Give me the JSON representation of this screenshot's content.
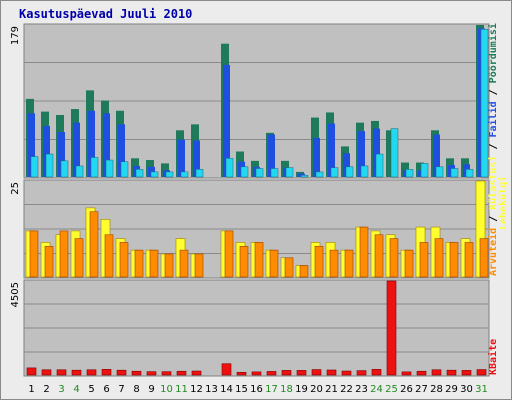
{
  "title": "Kasutuspäevad Juuli 2010",
  "colors": {
    "background": "#c0c0c0",
    "visits": "#1e7a5a",
    "pages": "#1f4fe0",
    "hits": "#22d8f0",
    "files_orange": "#ff8c00",
    "bandwidth": "#ee1111",
    "hosts_yellow": "#ffff30",
    "weekend_label": "#228b22"
  },
  "chart_data": [
    {
      "type": "bar",
      "panel": "top",
      "ymax_label": "179",
      "ylim": [
        0,
        179
      ],
      "legend_labels": [
        "Failid",
        "Lehekülgi",
        "Pöördumisi"
      ],
      "legend_separator": " / ",
      "categories": [
        "1",
        "2",
        "3",
        "4",
        "5",
        "6",
        "7",
        "8",
        "9",
        "10",
        "11",
        "12",
        "13",
        "14",
        "15",
        "16",
        "17",
        "18",
        "19",
        "20",
        "21",
        "22",
        "23",
        "24",
        "25",
        "26",
        "27",
        "28",
        "29",
        "30",
        "31"
      ],
      "series": [
        {
          "name": "Pöördumisi",
          "color": "#1e7a5a",
          "values": [
            92,
            77,
            73,
            80,
            102,
            90,
            78,
            22,
            20,
            16,
            55,
            62,
            0,
            157,
            30,
            19,
            52,
            19,
            6,
            70,
            76,
            36,
            64,
            66,
            55,
            17,
            17,
            55,
            22,
            22,
            179
          ]
        },
        {
          "name": "Lehekülgi",
          "color": "#1f4fe0",
          "values": [
            75,
            60,
            53,
            64,
            78,
            75,
            62,
            13,
            12,
            8,
            44,
            43,
            0,
            132,
            18,
            12,
            50,
            11,
            4,
            46,
            63,
            28,
            54,
            57,
            0,
            8,
            8,
            50,
            14,
            15,
            175
          ]
        },
        {
          "name": "Failid",
          "color": "#22d8f0",
          "values": [
            24,
            27,
            19,
            13,
            23,
            20,
            18,
            9,
            6,
            6,
            6,
            9,
            0,
            22,
            12,
            10,
            10,
            11,
            2,
            6,
            11,
            12,
            13,
            27,
            57,
            9,
            16,
            12,
            10,
            9,
            174
          ]
        }
      ]
    },
    {
      "type": "bar",
      "panel": "middle",
      "ymax_label": "25",
      "ylim": [
        0,
        25
      ],
      "legend_labels": [
        "Arvuteid",
        "Külastusi"
      ],
      "categories": [
        "1",
        "2",
        "3",
        "4",
        "5",
        "6",
        "7",
        "8",
        "9",
        "10",
        "11",
        "12",
        "13",
        "14",
        "15",
        "16",
        "17",
        "18",
        "19",
        "20",
        "21",
        "22",
        "23",
        "24",
        "25",
        "26",
        "27",
        "28",
        "29",
        "30",
        "31"
      ],
      "series": [
        {
          "name": "Külastusi",
          "color": "#ffff30",
          "values": [
            12,
            9,
            11,
            12,
            18,
            15,
            10,
            7,
            7,
            6,
            10,
            6,
            0,
            12,
            9,
            9,
            7,
            5,
            3,
            9,
            9,
            7,
            13,
            12,
            11,
            7,
            13,
            13,
            9,
            10,
            25
          ]
        },
        {
          "name": "Arvuteid",
          "color": "#ff8c00",
          "values": [
            12,
            8,
            12,
            10,
            17,
            11,
            9,
            7,
            7,
            6,
            7,
            6,
            0,
            12,
            8,
            9,
            7,
            5,
            3,
            8,
            7,
            7,
            13,
            11,
            10,
            7,
            9,
            10,
            9,
            9,
            10
          ]
        }
      ]
    },
    {
      "type": "bar",
      "panel": "bottom",
      "ymax_label": "4505",
      "ylim": [
        0,
        4505
      ],
      "legend_labels": [
        "KBaite"
      ],
      "categories": [
        "1",
        "2",
        "3",
        "4",
        "5",
        "6",
        "7",
        "8",
        "9",
        "10",
        "11",
        "12",
        "13",
        "14",
        "15",
        "16",
        "17",
        "18",
        "19",
        "20",
        "21",
        "22",
        "23",
        "24",
        "25",
        "26",
        "27",
        "28",
        "29",
        "30",
        "31"
      ],
      "weekend_days": [
        "3",
        "4",
        "10",
        "11",
        "17",
        "18",
        "24",
        "25",
        "31"
      ],
      "series": [
        {
          "name": "KBaite",
          "color": "#ee1111",
          "values": [
            340,
            250,
            250,
            230,
            250,
            270,
            230,
            180,
            160,
            160,
            180,
            190,
            0,
            540,
            130,
            150,
            170,
            220,
            220,
            260,
            240,
            190,
            210,
            270,
            4505,
            150,
            180,
            250,
            230,
            220,
            260
          ]
        }
      ]
    }
  ]
}
